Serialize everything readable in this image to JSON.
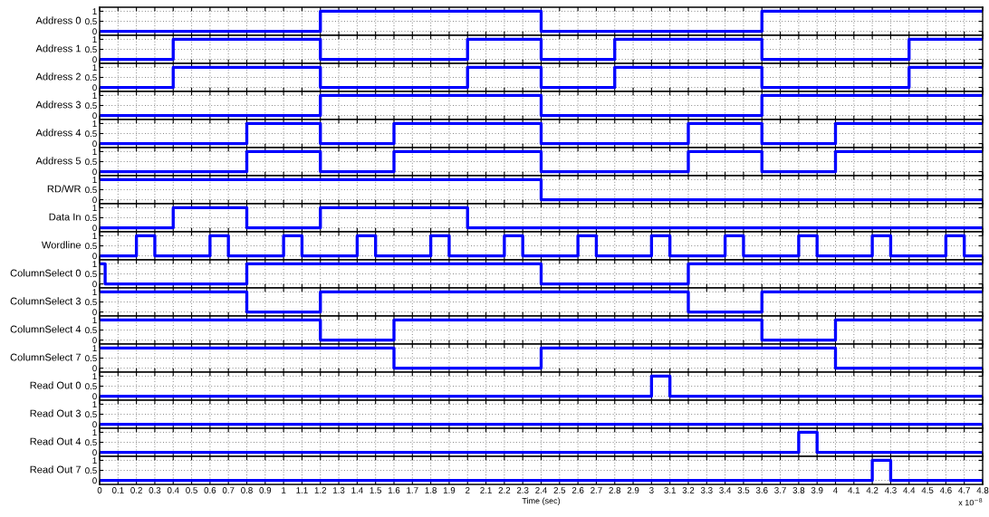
{
  "chart_data": [
    {
      "type": "step",
      "ylabel": "Address 0",
      "x": [
        0,
        1.2,
        2.4,
        3.6,
        4.8
      ],
      "series": [
        {
          "color": "#0000ff",
          "values": [
            0,
            1,
            0,
            1,
            1
          ]
        }
      ],
      "xlim": [
        0,
        4.8
      ],
      "xticks": [
        0,
        0.1,
        0.2,
        0.3,
        0.4,
        0.5,
        0.6,
        0.7,
        0.8,
        0.9,
        1,
        1.1,
        1.2,
        1.3,
        1.4,
        1.5,
        1.6,
        1.7,
        1.8,
        1.9,
        2,
        2.1,
        2.2,
        2.3,
        2.4,
        2.5,
        2.6,
        2.7,
        2.8,
        2.9,
        3,
        3.1,
        3.2,
        3.3,
        3.4,
        3.5,
        3.6,
        3.7,
        3.8,
        3.9,
        4,
        4.1,
        4.2,
        4.3,
        4.4,
        4.5,
        4.6,
        4.7,
        4.8
      ],
      "ylim": [
        -0.2,
        1.2
      ],
      "yticks": [
        0,
        0.5,
        1
      ],
      "grid": true,
      "tick_labels": "y"
    },
    {
      "type": "step",
      "ylabel": "Address 1",
      "x": [
        0,
        0.4,
        1.2,
        2,
        2.4,
        2.8,
        3.6,
        4.4,
        4.8
      ],
      "series": [
        {
          "color": "#0000ff",
          "values": [
            0,
            1,
            0,
            1,
            0,
            1,
            0,
            1,
            1
          ]
        }
      ],
      "xlim": [
        0,
        4.8
      ],
      "xticks": [
        0,
        0.1,
        0.2,
        0.3,
        0.4,
        0.5,
        0.6,
        0.7,
        0.8,
        0.9,
        1,
        1.1,
        1.2,
        1.3,
        1.4,
        1.5,
        1.6,
        1.7,
        1.8,
        1.9,
        2,
        2.1,
        2.2,
        2.3,
        2.4,
        2.5,
        2.6,
        2.7,
        2.8,
        2.9,
        3,
        3.1,
        3.2,
        3.3,
        3.4,
        3.5,
        3.6,
        3.7,
        3.8,
        3.9,
        4,
        4.1,
        4.2,
        4.3,
        4.4,
        4.5,
        4.6,
        4.7,
        4.8
      ],
      "ylim": [
        -0.2,
        1.2
      ],
      "yticks": [
        0,
        0.5,
        1
      ],
      "grid": true,
      "tick_labels": "y"
    },
    {
      "type": "step",
      "ylabel": "Address 2",
      "x": [
        0,
        0.4,
        1.2,
        2,
        2.4,
        2.8,
        3.6,
        4.4,
        4.8
      ],
      "series": [
        {
          "color": "#0000ff",
          "values": [
            0,
            1,
            0,
            1,
            0,
            1,
            0,
            1,
            1
          ]
        }
      ],
      "xlim": [
        0,
        4.8
      ],
      "xticks": [
        0,
        0.1,
        0.2,
        0.3,
        0.4,
        0.5,
        0.6,
        0.7,
        0.8,
        0.9,
        1,
        1.1,
        1.2,
        1.3,
        1.4,
        1.5,
        1.6,
        1.7,
        1.8,
        1.9,
        2,
        2.1,
        2.2,
        2.3,
        2.4,
        2.5,
        2.6,
        2.7,
        2.8,
        2.9,
        3,
        3.1,
        3.2,
        3.3,
        3.4,
        3.5,
        3.6,
        3.7,
        3.8,
        3.9,
        4,
        4.1,
        4.2,
        4.3,
        4.4,
        4.5,
        4.6,
        4.7,
        4.8
      ],
      "ylim": [
        -0.2,
        1.2
      ],
      "yticks": [
        0,
        0.5,
        1
      ],
      "grid": true,
      "tick_labels": "y"
    },
    {
      "type": "step",
      "ylabel": "Address 3",
      "x": [
        0,
        1.2,
        2.4,
        3.6,
        4.8
      ],
      "series": [
        {
          "color": "#0000ff",
          "values": [
            0,
            1,
            0,
            1,
            1
          ]
        }
      ],
      "xlim": [
        0,
        4.8
      ],
      "xticks": [
        0,
        0.1,
        0.2,
        0.3,
        0.4,
        0.5,
        0.6,
        0.7,
        0.8,
        0.9,
        1,
        1.1,
        1.2,
        1.3,
        1.4,
        1.5,
        1.6,
        1.7,
        1.8,
        1.9,
        2,
        2.1,
        2.2,
        2.3,
        2.4,
        2.5,
        2.6,
        2.7,
        2.8,
        2.9,
        3,
        3.1,
        3.2,
        3.3,
        3.4,
        3.5,
        3.6,
        3.7,
        3.8,
        3.9,
        4,
        4.1,
        4.2,
        4.3,
        4.4,
        4.5,
        4.6,
        4.7,
        4.8
      ],
      "ylim": [
        -0.2,
        1.2
      ],
      "yticks": [
        0,
        0.5,
        1
      ],
      "grid": true,
      "tick_labels": "y"
    },
    {
      "type": "step",
      "ylabel": "Address 4",
      "x": [
        0,
        0.8,
        1.2,
        1.6,
        2.4,
        3.2,
        3.6,
        4,
        4.8
      ],
      "series": [
        {
          "color": "#0000ff",
          "values": [
            0,
            1,
            0,
            1,
            0,
            1,
            0,
            1,
            1
          ]
        }
      ],
      "xlim": [
        0,
        4.8
      ],
      "xticks": [
        0,
        0.1,
        0.2,
        0.3,
        0.4,
        0.5,
        0.6,
        0.7,
        0.8,
        0.9,
        1,
        1.1,
        1.2,
        1.3,
        1.4,
        1.5,
        1.6,
        1.7,
        1.8,
        1.9,
        2,
        2.1,
        2.2,
        2.3,
        2.4,
        2.5,
        2.6,
        2.7,
        2.8,
        2.9,
        3,
        3.1,
        3.2,
        3.3,
        3.4,
        3.5,
        3.6,
        3.7,
        3.8,
        3.9,
        4,
        4.1,
        4.2,
        4.3,
        4.4,
        4.5,
        4.6,
        4.7,
        4.8
      ],
      "ylim": [
        -0.2,
        1.2
      ],
      "yticks": [
        0,
        0.5,
        1
      ],
      "grid": true,
      "tick_labels": "y"
    },
    {
      "type": "step",
      "ylabel": "Address 5",
      "x": [
        0,
        0.8,
        1.2,
        1.6,
        2.4,
        3.2,
        3.6,
        4,
        4.8
      ],
      "series": [
        {
          "color": "#0000ff",
          "values": [
            0,
            1,
            0,
            1,
            0,
            1,
            0,
            1,
            1
          ]
        }
      ],
      "xlim": [
        0,
        4.8
      ],
      "xticks": [
        0,
        0.1,
        0.2,
        0.3,
        0.4,
        0.5,
        0.6,
        0.7,
        0.8,
        0.9,
        1,
        1.1,
        1.2,
        1.3,
        1.4,
        1.5,
        1.6,
        1.7,
        1.8,
        1.9,
        2,
        2.1,
        2.2,
        2.3,
        2.4,
        2.5,
        2.6,
        2.7,
        2.8,
        2.9,
        3,
        3.1,
        3.2,
        3.3,
        3.4,
        3.5,
        3.6,
        3.7,
        3.8,
        3.9,
        4,
        4.1,
        4.2,
        4.3,
        4.4,
        4.5,
        4.6,
        4.7,
        4.8
      ],
      "ylim": [
        -0.2,
        1.2
      ],
      "yticks": [
        0,
        0.5,
        1
      ],
      "grid": true,
      "tick_labels": "y"
    },
    {
      "type": "step",
      "ylabel": "RD/WR",
      "x": [
        0,
        2.4,
        4.8
      ],
      "series": [
        {
          "color": "#0000ff",
          "values": [
            1,
            0,
            0
          ]
        }
      ],
      "xlim": [
        0,
        4.8
      ],
      "xticks": [
        0,
        0.1,
        0.2,
        0.3,
        0.4,
        0.5,
        0.6,
        0.7,
        0.8,
        0.9,
        1,
        1.1,
        1.2,
        1.3,
        1.4,
        1.5,
        1.6,
        1.7,
        1.8,
        1.9,
        2,
        2.1,
        2.2,
        2.3,
        2.4,
        2.5,
        2.6,
        2.7,
        2.8,
        2.9,
        3,
        3.1,
        3.2,
        3.3,
        3.4,
        3.5,
        3.6,
        3.7,
        3.8,
        3.9,
        4,
        4.1,
        4.2,
        4.3,
        4.4,
        4.5,
        4.6,
        4.7,
        4.8
      ],
      "ylim": [
        -0.2,
        1.2
      ],
      "yticks": [
        0,
        0.5,
        1
      ],
      "grid": true,
      "tick_labels": "y"
    },
    {
      "type": "step",
      "ylabel": "Data In",
      "x": [
        0,
        0.4,
        0.8,
        1.2,
        2,
        4.8
      ],
      "series": [
        {
          "color": "#0000ff",
          "values": [
            0,
            1,
            0,
            1,
            0,
            0
          ]
        }
      ],
      "xlim": [
        0,
        4.8
      ],
      "xticks": [
        0,
        0.1,
        0.2,
        0.3,
        0.4,
        0.5,
        0.6,
        0.7,
        0.8,
        0.9,
        1,
        1.1,
        1.2,
        1.3,
        1.4,
        1.5,
        1.6,
        1.7,
        1.8,
        1.9,
        2,
        2.1,
        2.2,
        2.3,
        2.4,
        2.5,
        2.6,
        2.7,
        2.8,
        2.9,
        3,
        3.1,
        3.2,
        3.3,
        3.4,
        3.5,
        3.6,
        3.7,
        3.8,
        3.9,
        4,
        4.1,
        4.2,
        4.3,
        4.4,
        4.5,
        4.6,
        4.7,
        4.8
      ],
      "ylim": [
        -0.2,
        1.2
      ],
      "yticks": [
        0,
        0.5,
        1
      ],
      "grid": true,
      "tick_labels": "y"
    },
    {
      "type": "step",
      "ylabel": "Wordline",
      "x": [
        0,
        0.2,
        0.3,
        0.6,
        0.7,
        1,
        1.1,
        1.4,
        1.5,
        1.8,
        1.9,
        2.2,
        2.3,
        2.6,
        2.7,
        3,
        3.1,
        3.4,
        3.5,
        3.8,
        3.9,
        4.2,
        4.3,
        4.6,
        4.7,
        4.8
      ],
      "series": [
        {
          "color": "#0000ff",
          "values": [
            0,
            1,
            0,
            1,
            0,
            1,
            0,
            1,
            0,
            1,
            0,
            1,
            0,
            1,
            0,
            1,
            0,
            1,
            0,
            1,
            0,
            1,
            0,
            1,
            0,
            0
          ]
        }
      ],
      "xlim": [
        0,
        4.8
      ],
      "xticks": [
        0,
        0.1,
        0.2,
        0.3,
        0.4,
        0.5,
        0.6,
        0.7,
        0.8,
        0.9,
        1,
        1.1,
        1.2,
        1.3,
        1.4,
        1.5,
        1.6,
        1.7,
        1.8,
        1.9,
        2,
        2.1,
        2.2,
        2.3,
        2.4,
        2.5,
        2.6,
        2.7,
        2.8,
        2.9,
        3,
        3.1,
        3.2,
        3.3,
        3.4,
        3.5,
        3.6,
        3.7,
        3.8,
        3.9,
        4,
        4.1,
        4.2,
        4.3,
        4.4,
        4.5,
        4.6,
        4.7,
        4.8
      ],
      "ylim": [
        -0.2,
        1.2
      ],
      "yticks": [
        0,
        0.5,
        1
      ],
      "grid": true,
      "tick_labels": "y"
    },
    {
      "type": "step",
      "ylabel": "ColumnSelect 0",
      "x": [
        0,
        0.03,
        0.8,
        2.4,
        3.2,
        4.8
      ],
      "series": [
        {
          "color": "#0000ff",
          "values": [
            1,
            0,
            1,
            0,
            1,
            1
          ]
        }
      ],
      "xlim": [
        0,
        4.8
      ],
      "xticks": [
        0,
        0.1,
        0.2,
        0.3,
        0.4,
        0.5,
        0.6,
        0.7,
        0.8,
        0.9,
        1,
        1.1,
        1.2,
        1.3,
        1.4,
        1.5,
        1.6,
        1.7,
        1.8,
        1.9,
        2,
        2.1,
        2.2,
        2.3,
        2.4,
        2.5,
        2.6,
        2.7,
        2.8,
        2.9,
        3,
        3.1,
        3.2,
        3.3,
        3.4,
        3.5,
        3.6,
        3.7,
        3.8,
        3.9,
        4,
        4.1,
        4.2,
        4.3,
        4.4,
        4.5,
        4.6,
        4.7,
        4.8
      ],
      "ylim": [
        -0.2,
        1.2
      ],
      "yticks": [
        0,
        0.5,
        1
      ],
      "grid": true,
      "tick_labels": "y"
    },
    {
      "type": "step",
      "ylabel": "ColumnSelect 3",
      "x": [
        0,
        0.8,
        1.2,
        3.2,
        3.6,
        4.8
      ],
      "series": [
        {
          "color": "#0000ff",
          "values": [
            1,
            0,
            1,
            0,
            1,
            1
          ]
        }
      ],
      "xlim": [
        0,
        4.8
      ],
      "xticks": [
        0,
        0.1,
        0.2,
        0.3,
        0.4,
        0.5,
        0.6,
        0.7,
        0.8,
        0.9,
        1,
        1.1,
        1.2,
        1.3,
        1.4,
        1.5,
        1.6,
        1.7,
        1.8,
        1.9,
        2,
        2.1,
        2.2,
        2.3,
        2.4,
        2.5,
        2.6,
        2.7,
        2.8,
        2.9,
        3,
        3.1,
        3.2,
        3.3,
        3.4,
        3.5,
        3.6,
        3.7,
        3.8,
        3.9,
        4,
        4.1,
        4.2,
        4.3,
        4.4,
        4.5,
        4.6,
        4.7,
        4.8
      ],
      "ylim": [
        -0.2,
        1.2
      ],
      "yticks": [
        0,
        0.5,
        1
      ],
      "grid": true,
      "tick_labels": "y"
    },
    {
      "type": "step",
      "ylabel": "ColumnSelect 4",
      "x": [
        0,
        1.2,
        1.6,
        3.6,
        4,
        4.8
      ],
      "series": [
        {
          "color": "#0000ff",
          "values": [
            1,
            0,
            1,
            0,
            1,
            1
          ]
        }
      ],
      "xlim": [
        0,
        4.8
      ],
      "xticks": [
        0,
        0.1,
        0.2,
        0.3,
        0.4,
        0.5,
        0.6,
        0.7,
        0.8,
        0.9,
        1,
        1.1,
        1.2,
        1.3,
        1.4,
        1.5,
        1.6,
        1.7,
        1.8,
        1.9,
        2,
        2.1,
        2.2,
        2.3,
        2.4,
        2.5,
        2.6,
        2.7,
        2.8,
        2.9,
        3,
        3.1,
        3.2,
        3.3,
        3.4,
        3.5,
        3.6,
        3.7,
        3.8,
        3.9,
        4,
        4.1,
        4.2,
        4.3,
        4.4,
        4.5,
        4.6,
        4.7,
        4.8
      ],
      "ylim": [
        -0.2,
        1.2
      ],
      "yticks": [
        0,
        0.5,
        1
      ],
      "grid": true,
      "tick_labels": "y"
    },
    {
      "type": "step",
      "ylabel": "ColumnSelect 7",
      "x": [
        0,
        1.6,
        2.4,
        4,
        4.8
      ],
      "series": [
        {
          "color": "#0000ff",
          "values": [
            1,
            0,
            1,
            0,
            0
          ]
        }
      ],
      "xlim": [
        0,
        4.8
      ],
      "xticks": [
        0,
        0.1,
        0.2,
        0.3,
        0.4,
        0.5,
        0.6,
        0.7,
        0.8,
        0.9,
        1,
        1.1,
        1.2,
        1.3,
        1.4,
        1.5,
        1.6,
        1.7,
        1.8,
        1.9,
        2,
        2.1,
        2.2,
        2.3,
        2.4,
        2.5,
        2.6,
        2.7,
        2.8,
        2.9,
        3,
        3.1,
        3.2,
        3.3,
        3.4,
        3.5,
        3.6,
        3.7,
        3.8,
        3.9,
        4,
        4.1,
        4.2,
        4.3,
        4.4,
        4.5,
        4.6,
        4.7,
        4.8
      ],
      "ylim": [
        -0.2,
        1.2
      ],
      "yticks": [
        0,
        0.5,
        1
      ],
      "grid": true,
      "tick_labels": "y"
    },
    {
      "type": "step",
      "ylabel": "Read Out 0",
      "x": [
        0,
        3,
        3.1,
        4.8
      ],
      "series": [
        {
          "color": "#0000ff",
          "values": [
            0,
            1,
            0,
            0
          ]
        }
      ],
      "xlim": [
        0,
        4.8
      ],
      "xticks": [
        0,
        0.1,
        0.2,
        0.3,
        0.4,
        0.5,
        0.6,
        0.7,
        0.8,
        0.9,
        1,
        1.1,
        1.2,
        1.3,
        1.4,
        1.5,
        1.6,
        1.7,
        1.8,
        1.9,
        2,
        2.1,
        2.2,
        2.3,
        2.4,
        2.5,
        2.6,
        2.7,
        2.8,
        2.9,
        3,
        3.1,
        3.2,
        3.3,
        3.4,
        3.5,
        3.6,
        3.7,
        3.8,
        3.9,
        4,
        4.1,
        4.2,
        4.3,
        4.4,
        4.5,
        4.6,
        4.7,
        4.8
      ],
      "ylim": [
        -0.2,
        1.2
      ],
      "yticks": [
        0,
        0.5,
        1
      ],
      "grid": true,
      "tick_labels": "y"
    },
    {
      "type": "step",
      "ylabel": "Read Out 3",
      "x": [
        0,
        4.8
      ],
      "series": [
        {
          "color": "#0000ff",
          "values": [
            0,
            0
          ]
        }
      ],
      "xlim": [
        0,
        4.8
      ],
      "xticks": [
        0,
        0.1,
        0.2,
        0.3,
        0.4,
        0.5,
        0.6,
        0.7,
        0.8,
        0.9,
        1,
        1.1,
        1.2,
        1.3,
        1.4,
        1.5,
        1.6,
        1.7,
        1.8,
        1.9,
        2,
        2.1,
        2.2,
        2.3,
        2.4,
        2.5,
        2.6,
        2.7,
        2.8,
        2.9,
        3,
        3.1,
        3.2,
        3.3,
        3.4,
        3.5,
        3.6,
        3.7,
        3.8,
        3.9,
        4,
        4.1,
        4.2,
        4.3,
        4.4,
        4.5,
        4.6,
        4.7,
        4.8
      ],
      "ylim": [
        -0.2,
        1.2
      ],
      "yticks": [
        0,
        0.5,
        1
      ],
      "grid": true,
      "tick_labels": "y"
    },
    {
      "type": "step",
      "ylabel": "Read Out 4",
      "x": [
        0,
        3.8,
        3.9,
        4.8
      ],
      "series": [
        {
          "color": "#0000ff",
          "values": [
            0,
            1,
            0,
            0
          ]
        }
      ],
      "xlim": [
        0,
        4.8
      ],
      "xticks": [
        0,
        0.1,
        0.2,
        0.3,
        0.4,
        0.5,
        0.6,
        0.7,
        0.8,
        0.9,
        1,
        1.1,
        1.2,
        1.3,
        1.4,
        1.5,
        1.6,
        1.7,
        1.8,
        1.9,
        2,
        2.1,
        2.2,
        2.3,
        2.4,
        2.5,
        2.6,
        2.7,
        2.8,
        2.9,
        3,
        3.1,
        3.2,
        3.3,
        3.4,
        3.5,
        3.6,
        3.7,
        3.8,
        3.9,
        4,
        4.1,
        4.2,
        4.3,
        4.4,
        4.5,
        4.6,
        4.7,
        4.8
      ],
      "ylim": [
        -0.2,
        1.2
      ],
      "yticks": [
        0,
        0.5,
        1
      ],
      "grid": true,
      "tick_labels": "y"
    },
    {
      "type": "step",
      "ylabel": "Read Out 7",
      "xlabel": "Time (sec)",
      "annotations": [
        "x 10$^{−8}$"
      ],
      "x": [
        0,
        4.2,
        4.3,
        4.8
      ],
      "series": [
        {
          "color": "#0000ff",
          "values": [
            0,
            1,
            0,
            0
          ]
        }
      ],
      "xlim": [
        0,
        4.8
      ],
      "xticks": [
        0,
        0.1,
        0.2,
        0.3,
        0.4,
        0.5,
        0.6,
        0.7,
        0.8,
        0.9,
        1,
        1.1,
        1.2,
        1.3,
        1.4,
        1.5,
        1.6,
        1.7,
        1.8,
        1.9,
        2,
        2.1,
        2.2,
        2.3,
        2.4,
        2.5,
        2.6,
        2.7,
        2.8,
        2.9,
        3,
        3.1,
        3.2,
        3.3,
        3.4,
        3.5,
        3.6,
        3.7,
        3.8,
        3.9,
        4,
        4.1,
        4.2,
        4.3,
        4.4,
        4.5,
        4.6,
        4.7,
        4.8
      ],
      "ylim": [
        -0.2,
        1.2
      ],
      "yticks": [
        0,
        0.5,
        1
      ],
      "grid": true
    }
  ]
}
